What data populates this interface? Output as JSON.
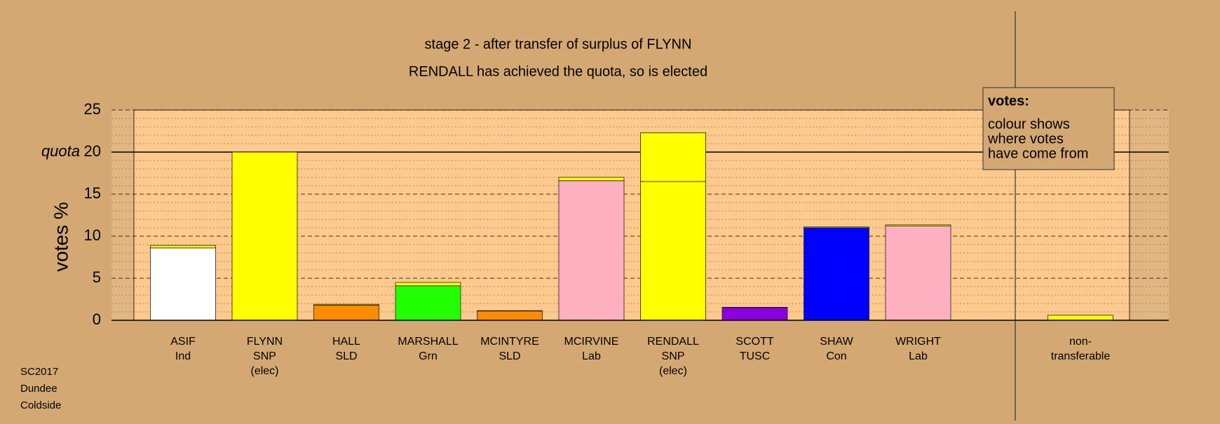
{
  "chart_data": {
    "type": "stacked_bar",
    "title": "stage 2 - after transfer of surplus of FLYNN",
    "subtitle": "RENDALL has achieved the quota, so is elected",
    "y_label": "votes %",
    "categories": [
      [
        "ASIF",
        "Ind"
      ],
      [
        "FLYNN",
        "SNP",
        "(elec)"
      ],
      [
        "HALL",
        "SLD"
      ],
      [
        "MARSHALL",
        "Grn"
      ],
      [
        "MCINTYRE",
        "SLD"
      ],
      [
        "MCIRVINE",
        "Lab"
      ],
      [
        "RENDALL",
        "SNP",
        "(elec)"
      ],
      [
        "SCOTT",
        "TUSC"
      ],
      [
        "SHAW",
        "Con"
      ],
      [
        "WRIGHT",
        "Lab"
      ],
      [
        "non-",
        "transferable"
      ]
    ],
    "series": [
      {
        "colors": [
          "#ffffff",
          "#ffff00",
          "#ff8c00",
          "#22ff00",
          "#ff8c00",
          "#ffb0c0",
          "#ffff00",
          "#8a00e0",
          "#0000ff",
          "#ffb0c0",
          "#ffff00"
        ],
        "values": [
          8.6,
          20.0,
          1.8,
          4.1,
          1.1,
          16.6,
          16.5,
          1.5,
          11.0,
          11.2,
          null
        ]
      },
      {
        "color": "#ffff00",
        "values": [
          0.3,
          null,
          0.1,
          0.4,
          0.05,
          0.4,
          5.8,
          0.05,
          0.1,
          0.15,
          0.6
        ]
      }
    ],
    "ylim": [
      0,
      25
    ],
    "yticks": [
      0,
      5,
      10,
      15,
      20,
      25
    ],
    "quota": {
      "value": 20,
      "label": "quota"
    },
    "grid": true,
    "minor_grid": true,
    "legend": {
      "title": "votes:",
      "lines": [
        "colour shows",
        "where votes",
        "have come from"
      ]
    },
    "footer": [
      "SC2017",
      "Dundee",
      "Coldside"
    ]
  }
}
